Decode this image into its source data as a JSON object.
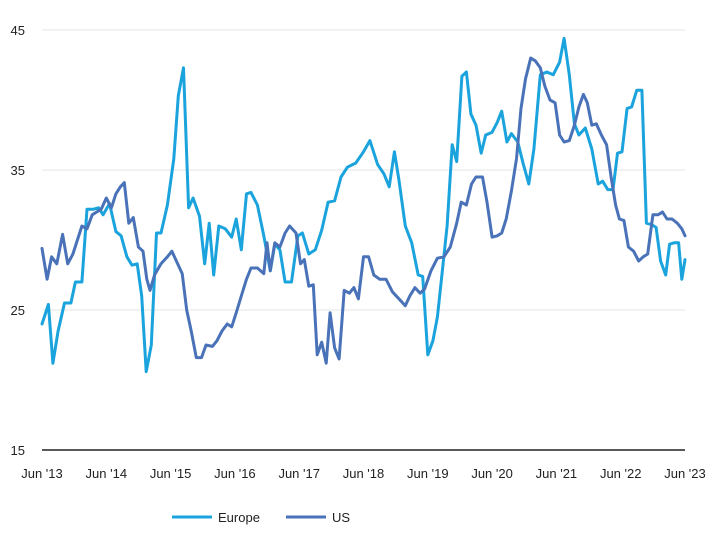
{
  "chart_data": {
    "type": "line",
    "title": "",
    "xlabel": "",
    "ylabel": "",
    "ylim": [
      15,
      45
    ],
    "yticks": [
      15,
      25,
      35,
      45
    ],
    "xlim": [
      2013.5,
      2023.5
    ],
    "xticks": [
      {
        "x": 2013.5,
        "label": "Jun '13"
      },
      {
        "x": 2014.5,
        "label": "Jun '14"
      },
      {
        "x": 2015.5,
        "label": "Jun '15"
      },
      {
        "x": 2016.5,
        "label": "Jun '16"
      },
      {
        "x": 2017.5,
        "label": "Jun '17"
      },
      {
        "x": 2018.5,
        "label": "Jun '18"
      },
      {
        "x": 2019.5,
        "label": "Jun '19"
      },
      {
        "x": 2020.5,
        "label": "Jun '20"
      },
      {
        "x": 2021.5,
        "label": "Jun '21"
      },
      {
        "x": 2022.5,
        "label": "Jun '22"
      },
      {
        "x": 2023.5,
        "label": "Jun '23"
      }
    ],
    "grid": "horizontal",
    "legend": "bottom",
    "series": [
      {
        "name": "Europe",
        "color": "#1aa3dc",
        "points": [
          [
            2013.5,
            24
          ],
          [
            2013.6,
            25.4
          ],
          [
            2013.67,
            21.2
          ],
          [
            2013.75,
            23.5
          ],
          [
            2013.85,
            25.5
          ],
          [
            2013.95,
            25.5
          ],
          [
            2014.02,
            27
          ],
          [
            2014.12,
            27
          ],
          [
            2014.2,
            32.2
          ],
          [
            2014.3,
            32.2
          ],
          [
            2014.38,
            32.3
          ],
          [
            2014.45,
            31.8
          ],
          [
            2014.55,
            32.6
          ],
          [
            2014.65,
            30.6
          ],
          [
            2014.73,
            30.3
          ],
          [
            2014.82,
            28.8
          ],
          [
            2014.9,
            28.2
          ],
          [
            2014.98,
            28.3
          ],
          [
            2015.05,
            26
          ],
          [
            2015.12,
            20.6
          ],
          [
            2015.2,
            22.5
          ],
          [
            2015.28,
            30.5
          ],
          [
            2015.35,
            30.5
          ],
          [
            2015.45,
            32.5
          ],
          [
            2015.55,
            35.8
          ],
          [
            2015.62,
            40.3
          ],
          [
            2015.7,
            42.3
          ],
          [
            2015.78,
            32.3
          ],
          [
            2015.85,
            33
          ],
          [
            2015.95,
            31.7
          ],
          [
            2016.03,
            28.3
          ],
          [
            2016.1,
            31.2
          ],
          [
            2016.17,
            27.5
          ],
          [
            2016.25,
            31
          ],
          [
            2016.35,
            30.8
          ],
          [
            2016.45,
            30.2
          ],
          [
            2016.52,
            31.5
          ],
          [
            2016.6,
            29.3
          ],
          [
            2016.68,
            33.3
          ],
          [
            2016.75,
            33.4
          ],
          [
            2016.85,
            32.5
          ],
          [
            2016.95,
            30.3
          ],
          [
            2017.05,
            27.8
          ],
          [
            2017.12,
            29.7
          ],
          [
            2017.2,
            29.3
          ],
          [
            2017.28,
            27
          ],
          [
            2017.38,
            27
          ],
          [
            2017.48,
            30.3
          ],
          [
            2017.55,
            30.5
          ],
          [
            2017.65,
            29
          ],
          [
            2017.75,
            29.3
          ],
          [
            2017.85,
            30.7
          ],
          [
            2017.95,
            32.7
          ],
          [
            2018.05,
            32.8
          ],
          [
            2018.15,
            34.5
          ],
          [
            2018.25,
            35.2
          ],
          [
            2018.38,
            35.5
          ],
          [
            2018.5,
            36.3
          ],
          [
            2018.6,
            37.1
          ],
          [
            2018.72,
            35.4
          ],
          [
            2018.82,
            34.7
          ],
          [
            2018.9,
            33.8
          ],
          [
            2018.98,
            36.3
          ],
          [
            2019.05,
            34.3
          ],
          [
            2019.15,
            31
          ],
          [
            2019.25,
            29.8
          ],
          [
            2019.35,
            27.5
          ],
          [
            2019.42,
            27.4
          ],
          [
            2019.5,
            21.8
          ],
          [
            2019.58,
            22.8
          ],
          [
            2019.65,
            24.5
          ],
          [
            2019.72,
            27.5
          ],
          [
            2019.8,
            31
          ],
          [
            2019.88,
            36.8
          ],
          [
            2019.95,
            35.6
          ],
          [
            2020.03,
            41.7
          ],
          [
            2020.1,
            42
          ],
          [
            2020.17,
            39
          ],
          [
            2020.25,
            38.2
          ],
          [
            2020.33,
            36.2
          ],
          [
            2020.4,
            37.5
          ],
          [
            2020.5,
            37.7
          ],
          [
            2020.58,
            38.4
          ],
          [
            2020.65,
            39.2
          ],
          [
            2020.73,
            37
          ],
          [
            2020.8,
            37.6
          ],
          [
            2020.9,
            37
          ],
          [
            2020.98,
            35.5
          ],
          [
            2021.07,
            34
          ],
          [
            2021.15,
            36.5
          ],
          [
            2021.25,
            41.8
          ],
          [
            2021.35,
            42
          ],
          [
            2021.45,
            41.8
          ],
          [
            2021.55,
            42.7
          ],
          [
            2021.62,
            44.4
          ],
          [
            2021.7,
            41.8
          ],
          [
            2021.78,
            38.3
          ],
          [
            2021.85,
            37.5
          ],
          [
            2021.95,
            38
          ],
          [
            2022.05,
            36.5
          ],
          [
            2022.15,
            34
          ],
          [
            2022.22,
            34.2
          ],
          [
            2022.3,
            33.6
          ],
          [
            2022.38,
            33.6
          ],
          [
            2022.45,
            36.2
          ],
          [
            2022.52,
            36.3
          ],
          [
            2022.6,
            39.4
          ],
          [
            2022.67,
            39.5
          ],
          [
            2022.75,
            40.7
          ],
          [
            2022.83,
            40.7
          ],
          [
            2022.9,
            31.2
          ],
          [
            2022.98,
            31.1
          ],
          [
            2023.05,
            30.9
          ],
          [
            2023.12,
            28.5
          ],
          [
            2023.2,
            27.5
          ],
          [
            2023.26,
            29.7
          ],
          [
            2023.33,
            29.8
          ],
          [
            2023.4,
            29.8
          ],
          [
            2023.45,
            27.2
          ],
          [
            2023.5,
            28.6
          ]
        ]
      },
      {
        "name": "US",
        "color": "#4a72b8",
        "points": [
          [
            2013.5,
            29.4
          ],
          [
            2013.58,
            27.2
          ],
          [
            2013.65,
            28.8
          ],
          [
            2013.73,
            28.3
          ],
          [
            2013.82,
            30.4
          ],
          [
            2013.9,
            28.3
          ],
          [
            2013.98,
            29
          ],
          [
            2014.05,
            30
          ],
          [
            2014.12,
            31
          ],
          [
            2014.2,
            30.8
          ],
          [
            2014.28,
            31.8
          ],
          [
            2014.35,
            32
          ],
          [
            2014.42,
            32.2
          ],
          [
            2014.5,
            33
          ],
          [
            2014.58,
            32.3
          ],
          [
            2014.65,
            33.3
          ],
          [
            2014.72,
            33.8
          ],
          [
            2014.78,
            34.1
          ],
          [
            2014.85,
            31.2
          ],
          [
            2014.92,
            31.6
          ],
          [
            2015.0,
            29.5
          ],
          [
            2015.07,
            29.2
          ],
          [
            2015.13,
            27.2
          ],
          [
            2015.18,
            26.4
          ],
          [
            2015.25,
            27.5
          ],
          [
            2015.35,
            28.3
          ],
          [
            2015.45,
            28.8
          ],
          [
            2015.52,
            29.2
          ],
          [
            2015.6,
            28.4
          ],
          [
            2015.68,
            27.6
          ],
          [
            2015.75,
            25
          ],
          [
            2015.82,
            23.5
          ],
          [
            2015.9,
            21.6
          ],
          [
            2015.98,
            21.6
          ],
          [
            2016.05,
            22.5
          ],
          [
            2016.15,
            22.4
          ],
          [
            2016.22,
            22.8
          ],
          [
            2016.3,
            23.5
          ],
          [
            2016.38,
            24
          ],
          [
            2016.45,
            23.8
          ],
          [
            2016.52,
            24.8
          ],
          [
            2016.6,
            26
          ],
          [
            2016.68,
            27.2
          ],
          [
            2016.75,
            28
          ],
          [
            2016.85,
            28
          ],
          [
            2016.95,
            27.6
          ],
          [
            2017.0,
            29.8
          ],
          [
            2017.05,
            27.8
          ],
          [
            2017.12,
            29.8
          ],
          [
            2017.2,
            29.5
          ],
          [
            2017.28,
            30.5
          ],
          [
            2017.35,
            31
          ],
          [
            2017.45,
            30.5
          ],
          [
            2017.52,
            28.3
          ],
          [
            2017.58,
            28.6
          ],
          [
            2017.65,
            26.7
          ],
          [
            2017.72,
            26.8
          ],
          [
            2017.78,
            21.8
          ],
          [
            2017.85,
            22.7
          ],
          [
            2017.92,
            21.2
          ],
          [
            2017.98,
            24.8
          ],
          [
            2018.05,
            22.3
          ],
          [
            2018.12,
            21.5
          ],
          [
            2018.2,
            26.4
          ],
          [
            2018.28,
            26.2
          ],
          [
            2018.35,
            26.6
          ],
          [
            2018.42,
            25.8
          ],
          [
            2018.5,
            28.8
          ],
          [
            2018.58,
            28.8
          ],
          [
            2018.66,
            27.5
          ],
          [
            2018.75,
            27.2
          ],
          [
            2018.85,
            27.2
          ],
          [
            2018.95,
            26.3
          ],
          [
            2019.05,
            25.8
          ],
          [
            2019.15,
            25.3
          ],
          [
            2019.22,
            26
          ],
          [
            2019.3,
            26.6
          ],
          [
            2019.38,
            26.2
          ],
          [
            2019.45,
            26.5
          ],
          [
            2019.55,
            27.8
          ],
          [
            2019.65,
            28.7
          ],
          [
            2019.75,
            28.8
          ],
          [
            2019.85,
            29.5
          ],
          [
            2019.95,
            31.2
          ],
          [
            2020.02,
            32.7
          ],
          [
            2020.1,
            32.5
          ],
          [
            2020.18,
            34
          ],
          [
            2020.25,
            34.5
          ],
          [
            2020.35,
            34.5
          ],
          [
            2020.42,
            32.7
          ],
          [
            2020.5,
            30.2
          ],
          [
            2020.58,
            30.3
          ],
          [
            2020.65,
            30.5
          ],
          [
            2020.72,
            31.5
          ],
          [
            2020.8,
            33.5
          ],
          [
            2020.88,
            35.8
          ],
          [
            2020.95,
            39.4
          ],
          [
            2021.02,
            41.5
          ],
          [
            2021.1,
            43
          ],
          [
            2021.17,
            42.8
          ],
          [
            2021.25,
            42.3
          ],
          [
            2021.32,
            41
          ],
          [
            2021.4,
            40
          ],
          [
            2021.48,
            39.8
          ],
          [
            2021.55,
            37.5
          ],
          [
            2021.62,
            37
          ],
          [
            2021.7,
            37.1
          ],
          [
            2021.78,
            38.2
          ],
          [
            2021.85,
            39.5
          ],
          [
            2021.92,
            40.4
          ],
          [
            2021.98,
            39.8
          ],
          [
            2022.05,
            38.2
          ],
          [
            2022.12,
            38.3
          ],
          [
            2022.2,
            37.5
          ],
          [
            2022.28,
            36.8
          ],
          [
            2022.35,
            34.5
          ],
          [
            2022.42,
            32.5
          ],
          [
            2022.48,
            31.5
          ],
          [
            2022.55,
            31.4
          ],
          [
            2022.62,
            29.5
          ],
          [
            2022.7,
            29.2
          ],
          [
            2022.78,
            28.5
          ],
          [
            2022.85,
            28.8
          ],
          [
            2022.92,
            29
          ],
          [
            2023.0,
            31.8
          ],
          [
            2023.08,
            31.8
          ],
          [
            2023.15,
            32
          ],
          [
            2023.22,
            31.5
          ],
          [
            2023.3,
            31.5
          ],
          [
            2023.38,
            31.2
          ],
          [
            2023.45,
            30.8
          ],
          [
            2023.5,
            30.3
          ]
        ]
      }
    ]
  }
}
